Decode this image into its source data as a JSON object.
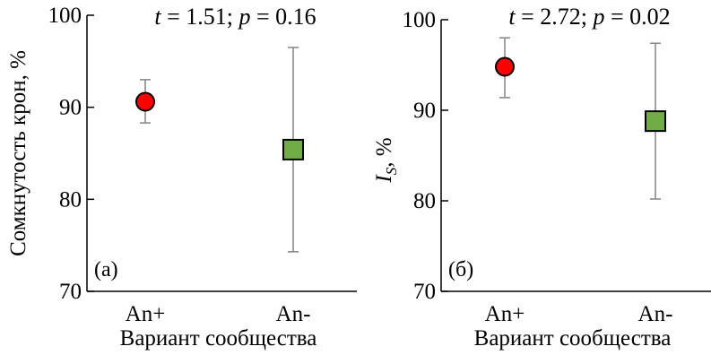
{
  "chart_data": [
    {
      "type": "scatter",
      "panel_label": "(а)",
      "annotation": {
        "t_symbol": "t",
        "t_rest": " = 1.51; ",
        "p_symbol": "p",
        "p_rest": " = 0.16"
      },
      "categories": [
        "An+",
        "An-"
      ],
      "points": [
        {
          "category": "An+",
          "value": 90.6,
          "err_low": 88.3,
          "err_high": 93.0,
          "marker": "circle",
          "color": "#ff0000"
        },
        {
          "category": "An-",
          "value": 85.4,
          "err_low": 74.3,
          "err_high": 96.5,
          "marker": "square",
          "color": "#70ad47"
        }
      ],
      "xlabel": "Вариант сообщества",
      "ylabel": "Сомкнутость крон, %",
      "ylim": [
        70,
        100
      ],
      "yticks": [
        70,
        80,
        90,
        100
      ],
      "grid": false
    },
    {
      "type": "scatter",
      "panel_label": "(б)",
      "annotation": {
        "t_symbol": "t",
        "t_rest": " = 2.72; ",
        "p_symbol": "p",
        "p_rest": " = 0.02"
      },
      "categories": [
        "An+",
        "An-"
      ],
      "points": [
        {
          "category": "An+",
          "value": 94.8,
          "err_low": 91.4,
          "err_high": 98.0,
          "marker": "circle",
          "color": "#ff0000"
        },
        {
          "category": "An-",
          "value": 88.8,
          "err_low": 80.2,
          "err_high": 97.4,
          "marker": "square",
          "color": "#70ad47"
        }
      ],
      "xlabel": "Вариант сообщества",
      "ylabel_main": "I",
      "ylabel_sub": "S",
      "ylabel_rest": ", %",
      "ylim": [
        70,
        100
      ],
      "yticks": [
        70,
        80,
        90,
        100
      ],
      "grid": false
    }
  ]
}
